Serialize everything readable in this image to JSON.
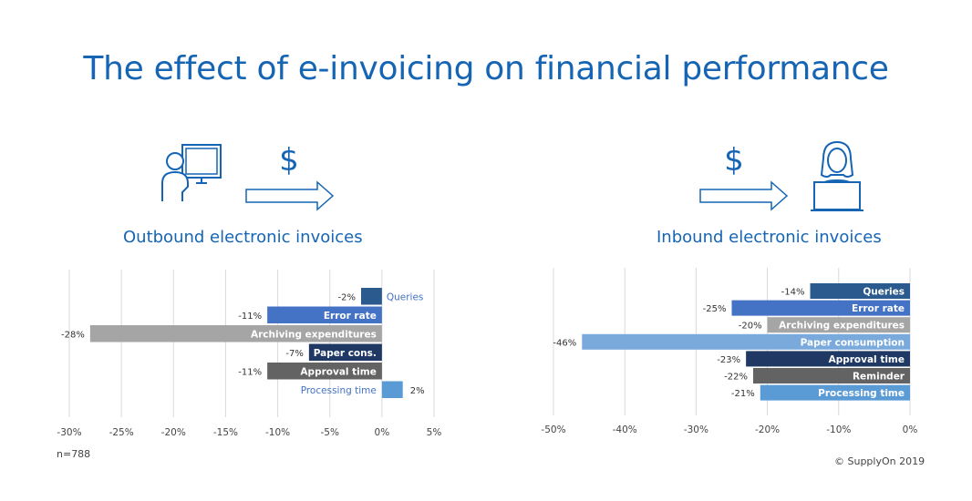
{
  "title": "The effect of e-invoicing on financial performance",
  "outbound_label": "Outbound electronic invoices",
  "inbound_label": "Inbound electronic invoices",
  "sample_note": "n=788",
  "copyright": "© SupplyOn 2019",
  "chart_data": [
    {
      "type": "bar",
      "orientation": "horizontal",
      "title": "Outbound electronic invoices",
      "categories": [
        "Queries",
        "Error rate",
        "Archiving expenditures",
        "Paper cons.",
        "Approval time",
        "Processing time"
      ],
      "values": [
        -2,
        -11,
        -28,
        -7,
        -11,
        2
      ],
      "labels": [
        "-2%",
        "-11%",
        "-28%",
        "-7%",
        "-11%",
        "2%"
      ],
      "colors": [
        "#2b5a8e",
        "#4472c4",
        "#a5a5a5",
        "#1f3864",
        "#636363",
        "#5b9bd5"
      ],
      "xlim": [
        -30,
        5
      ],
      "ticks": [
        -30,
        -25,
        -20,
        -15,
        -10,
        -5,
        0,
        5
      ],
      "tick_labels": [
        "-30%",
        "-25%",
        "-20%",
        "-15%",
        "-10%",
        "-5%",
        "0%",
        "5%"
      ],
      "grid": true
    },
    {
      "type": "bar",
      "orientation": "horizontal",
      "title": "Inbound electronic invoices",
      "categories": [
        "Queries",
        "Error rate",
        "Archiving expenditures",
        "Paper consumption",
        "Approval time",
        "Reminder",
        "Processing time"
      ],
      "values": [
        -14,
        -25,
        -20,
        -46,
        -23,
        -22,
        -21
      ],
      "labels": [
        "-14%",
        "-25%",
        "-20%",
        "-46%",
        "-23%",
        "-22%",
        "-21%"
      ],
      "colors": [
        "#2b5a8e",
        "#4472c4",
        "#a5a5a5",
        "#7aaadc",
        "#1f3864",
        "#636363",
        "#5b9bd5"
      ],
      "xlim": [
        -50,
        0
      ],
      "ticks": [
        -50,
        -40,
        -30,
        -20,
        -10,
        0
      ],
      "tick_labels": [
        "-50%",
        "-40%",
        "-30%",
        "-20%",
        "-10%",
        "0%"
      ],
      "grid": true
    }
  ]
}
